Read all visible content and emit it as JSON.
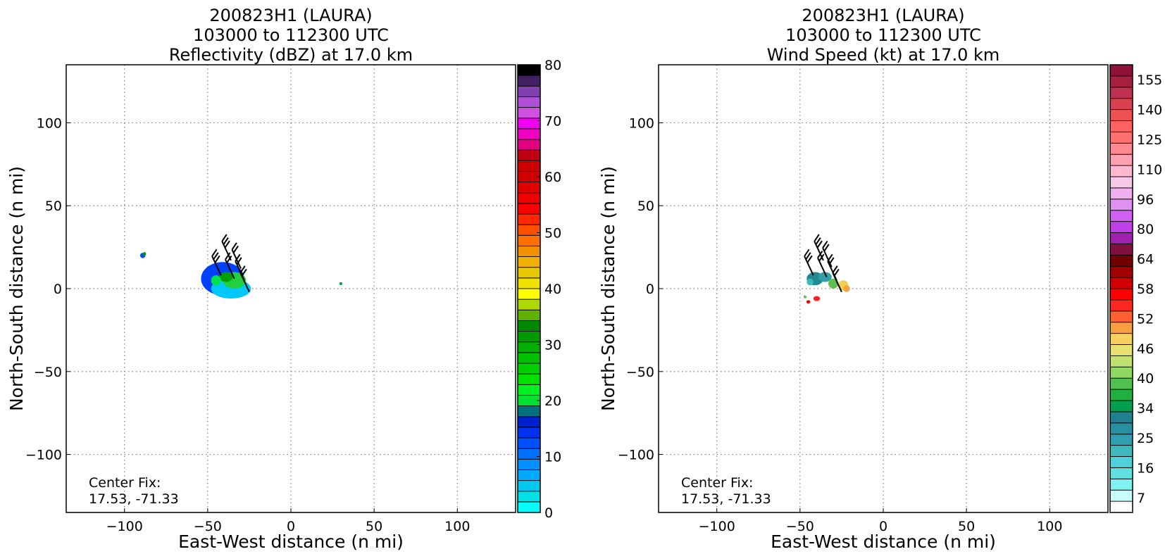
{
  "chart_data": [
    {
      "type": "heatmap",
      "title": [
        "200823H1 (LAURA)",
        "103000 to 112300 UTC",
        "Reflectivity (dBZ) at 17.0 km"
      ],
      "xlabel": "East-West distance (n mi)",
      "ylabel": "North-South distance (n mi)",
      "xlim": [
        -135,
        135
      ],
      "ylim": [
        -135,
        135
      ],
      "xticks": [
        -100,
        -50,
        0,
        50,
        100
      ],
      "yticks": [
        -100,
        -50,
        0,
        50,
        100
      ],
      "xtick_labels": [
        "−100",
        "−50",
        "0",
        "50",
        "100"
      ],
      "ytick_labels": [
        "−100",
        "−50",
        "0",
        "50",
        "100"
      ],
      "grid": "dotted",
      "annotation": [
        "Center Fix:",
        "17.53, -71.33"
      ],
      "colorbar": {
        "min": 0,
        "max": 80,
        "tick_values": [
          0,
          10,
          20,
          30,
          40,
          50,
          60,
          70,
          80
        ],
        "tick_labels": [
          "0",
          "10",
          "20",
          "30",
          "40",
          "50",
          "60",
          "70",
          "80"
        ],
        "colors": [
          "#00ffff",
          "#00e0e6",
          "#00c8f0",
          "#00aaff",
          "#0090ff",
          "#0070ff",
          "#0050ff",
          "#0030f0",
          "#0020d0",
          "#007080",
          "#00e030",
          "#00f020",
          "#00e000",
          "#00d000",
          "#00c000",
          "#00b000",
          "#009a00",
          "#008800",
          "#60b000",
          "#b0d800",
          "#ffff00",
          "#f0e000",
          "#e8c800",
          "#f0b000",
          "#f09000",
          "#ff7000",
          "#ff5000",
          "#ff2800",
          "#ff0000",
          "#f00000",
          "#e00000",
          "#d00000",
          "#cc0000",
          "#c00010",
          "#e00080",
          "#f000c0",
          "#f000f0",
          "#d050e0",
          "#b050d8",
          "#8040b0",
          "#402060",
          "#000000"
        ]
      },
      "data_regions": [
        {
          "x": -41,
          "y": 6,
          "rx": 13,
          "ry": 10,
          "color": "#0040ff"
        },
        {
          "x": -36,
          "y": 0,
          "rx": 12,
          "ry": 6,
          "color": "#00c8ff"
        },
        {
          "x": -34,
          "y": 5,
          "rx": 7,
          "ry": 5,
          "color": "#20d040"
        },
        {
          "x": -39,
          "y": 7,
          "rx": 4,
          "ry": 3,
          "color": "#00a000"
        },
        {
          "x": -45,
          "y": 5,
          "rx": 3,
          "ry": 3,
          "color": "#00e050"
        },
        {
          "x": -89,
          "y": 20,
          "rx": 1.6,
          "ry": 1.6,
          "color": "#0050ff"
        },
        {
          "x": -88,
          "y": 21,
          "rx": 1,
          "ry": 1,
          "color": "#00a000"
        },
        {
          "x": 30,
          "y": 3,
          "rx": 0.9,
          "ry": 0.9,
          "color": "#00a040"
        }
      ],
      "barbs": [
        {
          "x": -36,
          "y": 17,
          "flags": 3
        },
        {
          "x": -30,
          "y": 12,
          "flags": 2
        },
        {
          "x": -42,
          "y": 8,
          "flags": 3
        },
        {
          "x": -34,
          "y": 6,
          "flags": 2
        },
        {
          "x": -28,
          "y": 5,
          "flags": 2
        },
        {
          "x": -25,
          "y": -2,
          "flags": 2
        }
      ]
    },
    {
      "type": "heatmap",
      "title": [
        "200823H1 (LAURA)",
        "103000 to 112300 UTC",
        "Wind Speed (kt) at 17.0 km"
      ],
      "xlabel": "East-West distance (n mi)",
      "ylabel": "North-South distance (n mi)",
      "xlim": [
        -135,
        135
      ],
      "ylim": [
        -135,
        135
      ],
      "xticks": [
        -100,
        -50,
        0,
        50,
        100
      ],
      "yticks": [
        -100,
        -50,
        0,
        50,
        100
      ],
      "xtick_labels": [
        "−100",
        "−50",
        "0",
        "50",
        "100"
      ],
      "ytick_labels": [
        "−100",
        "−50",
        "0",
        "50",
        "100"
      ],
      "grid": "dotted",
      "annotation": [
        "Center Fix:",
        "17.53, -71.33"
      ],
      "colorbar": {
        "tick_labels": [
          "7",
          "16",
          "25",
          "34",
          "40",
          "46",
          "52",
          "58",
          "64",
          "80",
          "96",
          "110",
          "125",
          "140",
          "155"
        ],
        "colors": [
          "#ffffff",
          "#c8ffff",
          "#80f0f0",
          "#60e0e0",
          "#50d0d8",
          "#40b8c0",
          "#30a0b0",
          "#2890a0",
          "#208090",
          "#00a050",
          "#20b040",
          "#50c050",
          "#90d860",
          "#c0e070",
          "#e8e070",
          "#f8d060",
          "#f8a040",
          "#ff6030",
          "#ff2820",
          "#ff0000",
          "#d00000",
          "#a00000",
          "#700000",
          "#801040",
          "#a020b0",
          "#c040e8",
          "#d060f0",
          "#e090f0",
          "#f0b0f0",
          "#f8c8e8",
          "#ffb8d0",
          "#ffa0b0",
          "#ff8890",
          "#ff7070",
          "#ff6060",
          "#f05050",
          "#d84050",
          "#c03050",
          "#a82040",
          "#901038"
        ]
      },
      "data_regions": [
        {
          "x": -41,
          "y": 6,
          "rx": 5,
          "ry": 4,
          "color": "#208a90"
        },
        {
          "x": -35,
          "y": 7,
          "rx": 4,
          "ry": 3,
          "color": "#30a0a8"
        },
        {
          "x": -30,
          "y": 3,
          "rx": 3,
          "ry": 3,
          "color": "#60c050"
        },
        {
          "x": -24,
          "y": 2,
          "rx": 3,
          "ry": 3,
          "color": "#f0d050"
        },
        {
          "x": -22,
          "y": 0,
          "rx": 2,
          "ry": 2,
          "color": "#f8a040"
        },
        {
          "x": -40,
          "y": -6,
          "rx": 2,
          "ry": 1.5,
          "color": "#ff2020"
        },
        {
          "x": -45,
          "y": -8,
          "rx": 1.2,
          "ry": 1,
          "color": "#ff0000"
        },
        {
          "x": -47,
          "y": -5,
          "rx": 0.9,
          "ry": 0.9,
          "color": "#60c050"
        },
        {
          "x": -44,
          "y": 4,
          "rx": 2,
          "ry": 2,
          "color": "#40b8c0"
        }
      ],
      "barbs": [
        {
          "x": -36,
          "y": 17,
          "flags": 3
        },
        {
          "x": -31,
          "y": 13,
          "flags": 2
        },
        {
          "x": -42,
          "y": 8,
          "flags": 3
        },
        {
          "x": -34,
          "y": 7,
          "flags": 2
        },
        {
          "x": -28,
          "y": 5,
          "flags": 2
        },
        {
          "x": -25,
          "y": -2,
          "flags": 2
        }
      ]
    }
  ]
}
